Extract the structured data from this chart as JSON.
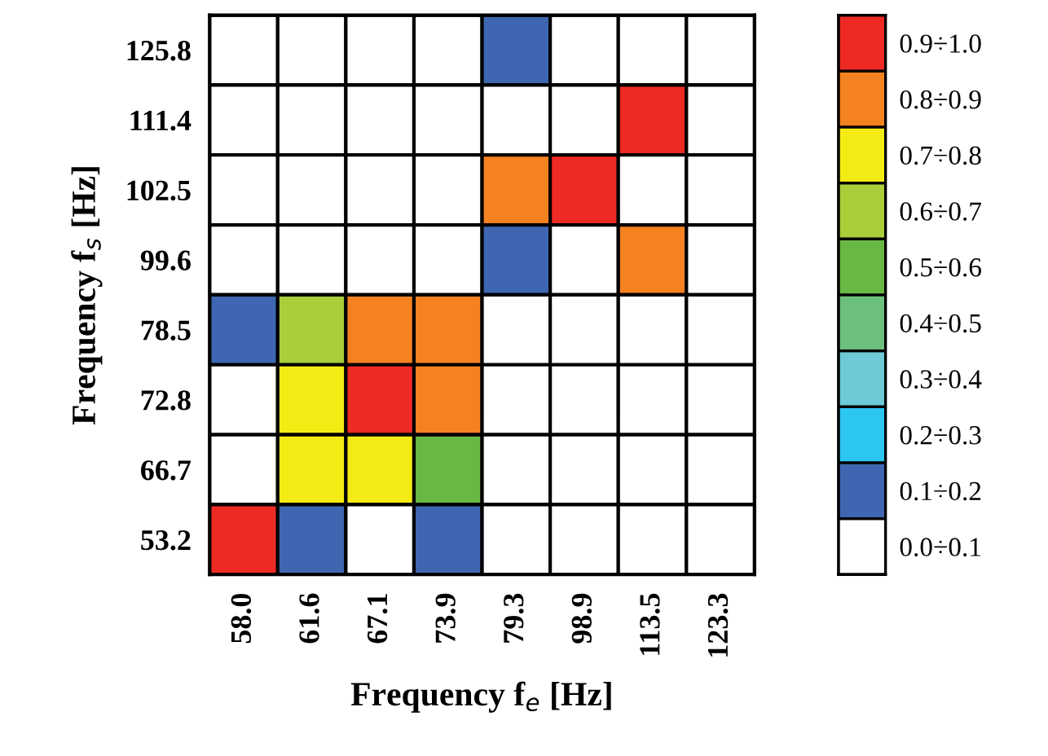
{
  "chart_data": {
    "type": "heatmap",
    "xlabel": "Frequency f$_{e}$ [Hz]",
    "ylabel": "Frequency f$_{s}$ [Hz]",
    "categories": [
      "58.0",
      "61.6",
      "67.1",
      "73.9",
      "79.3",
      "98.9",
      "113.5",
      "123.3"
    ],
    "y_categories": [
      "125.8",
      "111.4",
      "102.5",
      "99.6",
      "78.5",
      "72.8",
      "66.7",
      "53.2"
    ],
    "cells": [
      [
        0.05,
        0.05,
        0.05,
        0.05,
        0.15,
        0.05,
        0.05,
        0.05
      ],
      [
        0.05,
        0.05,
        0.05,
        0.05,
        0.05,
        0.05,
        0.95,
        0.05
      ],
      [
        0.05,
        0.05,
        0.05,
        0.05,
        0.85,
        0.95,
        0.05,
        0.05
      ],
      [
        0.05,
        0.05,
        0.05,
        0.05,
        0.15,
        0.05,
        0.85,
        0.05
      ],
      [
        0.15,
        0.65,
        0.85,
        0.85,
        0.05,
        0.05,
        0.05,
        0.05
      ],
      [
        0.05,
        0.75,
        0.95,
        0.85,
        0.05,
        0.05,
        0.05,
        0.05
      ],
      [
        0.05,
        0.75,
        0.75,
        0.55,
        0.05,
        0.05,
        0.05,
        0.05
      ],
      [
        0.95,
        0.15,
        0.05,
        0.15,
        0.05,
        0.05,
        0.05,
        0.05
      ]
    ],
    "colors": [
      "#ffffff",
      "#3f67b1",
      "#2dc6f0",
      "#6ecad7",
      "#6cc07d",
      "#6ab844",
      "#aacd3a",
      "#f5eb14",
      "#f58220",
      "#ee2a24"
    ],
    "clim": [
      0,
      1
    ],
    "cticks": [
      {
        "value": 0.05,
        "label": "0.0÷0.1"
      },
      {
        "value": 0.15,
        "label": "0.1÷0.2"
      },
      {
        "value": 0.25,
        "label": "0.2÷0.3"
      },
      {
        "value": 0.35,
        "label": "0.3÷0.4"
      },
      {
        "value": 0.45,
        "label": "0.4÷0.5"
      },
      {
        "value": 0.55,
        "label": "0.5÷0.6"
      },
      {
        "value": 0.65,
        "label": "0.6÷0.7"
      },
      {
        "value": 0.75,
        "label": "0.7÷0.8"
      },
      {
        "value": 0.85,
        "label": "0.8÷0.9"
      },
      {
        "value": 0.95,
        "label": "0.9÷1.0"
      }
    ]
  }
}
